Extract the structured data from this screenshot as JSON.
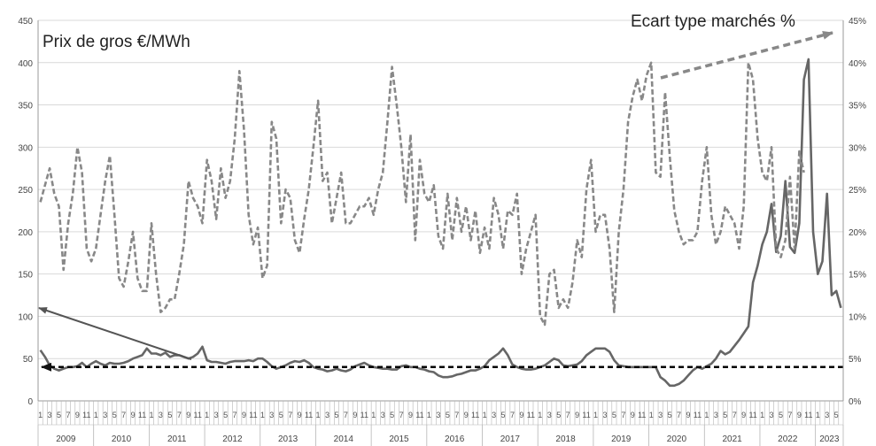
{
  "chart_data": {
    "type": "line",
    "title_left": "Prix de gros €/MWh",
    "title_right": "Ecart type marchés %",
    "y_left_ticks": [
      "0",
      "50",
      "100",
      "150",
      "200",
      "250",
      "300",
      "350",
      "400",
      "450"
    ],
    "y_right_ticks": [
      "0%",
      "5%",
      "10%",
      "15%",
      "20%",
      "25%",
      "30%",
      "35%",
      "40%",
      "45%"
    ],
    "ylim_left": [
      0,
      450
    ],
    "ylim_right": [
      0,
      45
    ],
    "years": [
      "2009",
      "2010",
      "2011",
      "2012",
      "2013",
      "2014",
      "2015",
      "2016",
      "2017",
      "2018",
      "2019",
      "2020",
      "2021",
      "2022",
      "2023"
    ],
    "month_labels": [
      "1",
      "",
      "3",
      "",
      "5",
      "",
      "7",
      "",
      "9",
      "",
      "11",
      ""
    ],
    "months_total": 174,
    "grid": true,
    "series": [
      {
        "axis": "left",
        "style": "solid",
        "color": "#666666",
        "values": [
          60,
          52,
          42,
          38,
          36,
          38,
          40,
          40,
          41,
          45,
          40,
          44,
          47,
          44,
          42,
          45,
          44,
          44,
          45,
          47,
          50,
          52,
          54,
          62,
          56,
          56,
          54,
          57,
          52,
          54,
          54,
          52,
          50,
          52,
          56,
          64,
          48,
          46,
          46,
          45,
          44,
          46,
          47,
          47,
          47,
          48,
          47,
          50,
          50,
          46,
          41,
          38,
          40,
          42,
          45,
          47,
          46,
          48,
          45,
          40,
          38,
          37,
          35,
          36,
          38,
          36,
          35,
          37,
          41,
          43,
          45,
          42,
          40,
          39,
          38,
          38,
          37,
          37,
          41,
          42,
          40,
          40,
          38,
          37,
          35,
          34,
          30,
          28,
          28,
          29,
          31,
          32,
          34,
          36,
          36,
          38,
          41,
          48,
          52,
          56,
          62,
          54,
          43,
          40,
          38,
          37,
          37,
          38,
          40,
          42,
          46,
          50,
          48,
          42,
          41,
          42,
          43,
          47,
          54,
          58,
          62,
          62,
          62,
          58,
          48,
          42,
          41,
          40,
          40,
          40,
          40,
          40,
          40,
          40,
          28,
          24,
          18,
          18,
          20,
          24,
          30,
          36,
          40,
          38,
          41,
          44,
          50,
          59,
          55,
          58,
          65,
          72,
          80,
          88,
          140,
          160,
          185,
          200,
          233,
          176,
          195,
          260,
          182,
          175,
          210,
          380,
          404,
          200,
          150,
          165,
          245,
          125,
          130,
          110
        ]
      },
      {
        "axis": "right",
        "style": "dashed",
        "color": "#888888",
        "values": [
          23.5,
          25.5,
          27.5,
          24.5,
          23,
          15.5,
          21,
          24.5,
          30,
          27,
          18,
          16.5,
          18,
          22,
          26,
          29,
          22,
          14.5,
          13.5,
          16.5,
          20,
          14.5,
          13,
          13,
          21,
          15,
          10.5,
          11,
          12,
          12,
          15,
          18.5,
          26,
          24,
          23,
          21,
          28.5,
          26,
          21.5,
          27.5,
          24,
          26,
          31,
          39,
          32,
          22,
          18.5,
          20.5,
          14.5,
          16,
          33,
          31,
          21,
          25,
          24,
          19,
          17.5,
          21.5,
          25,
          30,
          35.5,
          26,
          27,
          21,
          24,
          27,
          21,
          21,
          22,
          23,
          23,
          24,
          22,
          25,
          27,
          33,
          39.5,
          35,
          30,
          23.5,
          31.5,
          19,
          28.5,
          24.5,
          23.5,
          25.5,
          19.5,
          18,
          24.5,
          19,
          24,
          20,
          23,
          19,
          22.5,
          17.5,
          20.5,
          18,
          24,
          22,
          18,
          22.5,
          22,
          24.5,
          15,
          18,
          20,
          22,
          10,
          9,
          15,
          15.5,
          11,
          12,
          11,
          14,
          19,
          17,
          25,
          28.5,
          20,
          22,
          22,
          18,
          10.5,
          20,
          25,
          33,
          36,
          38,
          35.5,
          38.5,
          40,
          27,
          26.5,
          36.5,
          29,
          22.5,
          20,
          18.5,
          19,
          19,
          20,
          26,
          30,
          22,
          18.5,
          20,
          23,
          22,
          21,
          18,
          23,
          40,
          38,
          31,
          27,
          26,
          30,
          18,
          17,
          19,
          26.5,
          18,
          29.5,
          27
        ]
      },
      {
        "axis": "left",
        "style": "dashed",
        "color": "#000000",
        "values": [
          40,
          40
        ]
      }
    ]
  }
}
